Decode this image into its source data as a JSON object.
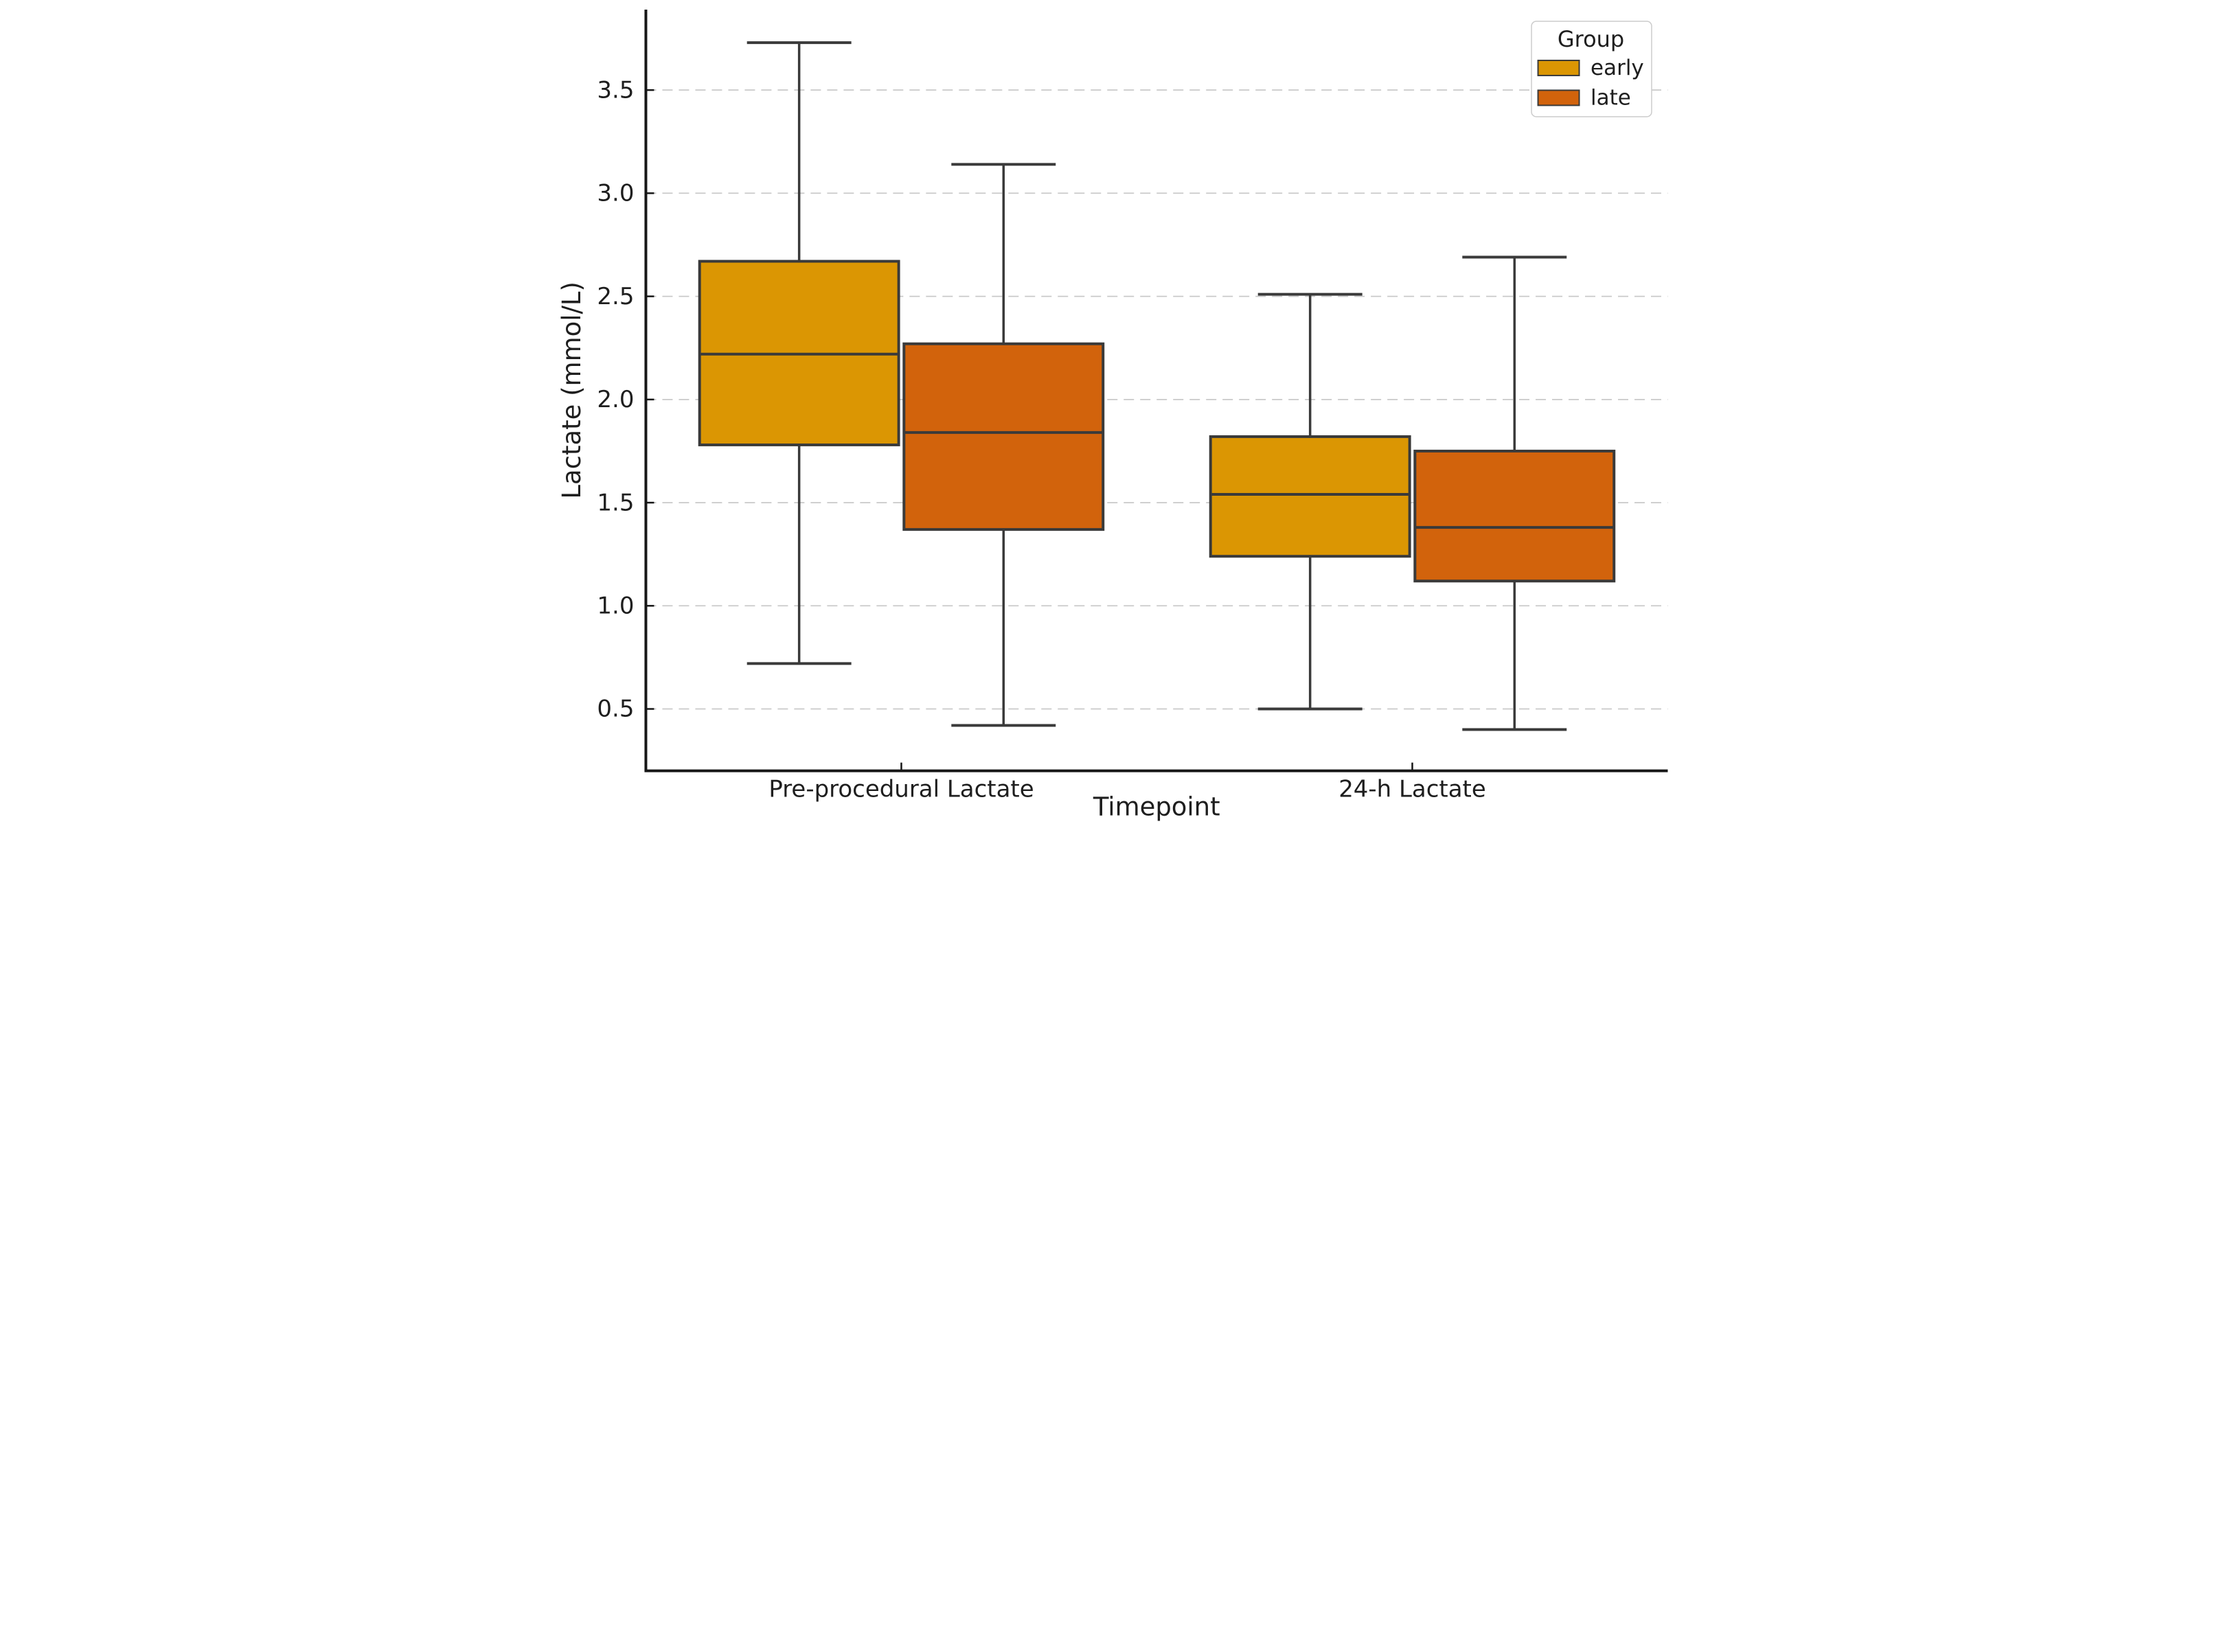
{
  "chart_data": {
    "type": "box",
    "xlabel": "Timepoint",
    "ylabel": "Lactate (mmol/L)",
    "categories": [
      "Pre-procedural Lactate",
      "24-h Lactate"
    ],
    "ylim": [
      0.2,
      3.89
    ],
    "yticks": [
      {
        "value": 0.5,
        "label": "0.5"
      },
      {
        "value": 1.0,
        "label": "1.0"
      },
      {
        "value": 1.5,
        "label": "1.5"
      },
      {
        "value": 2.0,
        "label": "2.0"
      },
      {
        "value": 2.5,
        "label": "2.5"
      },
      {
        "value": 3.0,
        "label": "3.0"
      },
      {
        "value": 3.5,
        "label": "3.5"
      }
    ],
    "grid": "horizontal-dashed",
    "legend": {
      "title": "Group",
      "position": "upper-right",
      "entries": [
        {
          "label": "early",
          "color": "#DB9603"
        },
        {
          "label": "late",
          "color": "#D2630C"
        }
      ]
    },
    "series": [
      {
        "name": "early",
        "color": "#DB9603",
        "boxes": [
          {
            "category": "Pre-procedural Lactate",
            "whisker_low": 0.72,
            "q1": 1.78,
            "median": 2.22,
            "q3": 2.67,
            "whisker_high": 3.73
          },
          {
            "category": "24-h Lactate",
            "whisker_low": 0.5,
            "q1": 1.24,
            "median": 1.54,
            "q3": 1.82,
            "whisker_high": 2.51
          }
        ]
      },
      {
        "name": "late",
        "color": "#D2630C",
        "boxes": [
          {
            "category": "Pre-procedural Lactate",
            "whisker_low": 0.42,
            "q1": 1.37,
            "median": 1.84,
            "q3": 2.27,
            "whisker_high": 3.14
          },
          {
            "category": "24-h Lactate",
            "whisker_low": 0.4,
            "q1": 1.12,
            "median": 1.38,
            "q3": 1.75,
            "whisker_high": 2.69
          }
        ]
      }
    ],
    "styles": {
      "box_edge_color": "#3A3A3A",
      "median_color": "#3A3A3A",
      "whisker_color": "#3A3A3A",
      "spine_color": "#161616",
      "grid_color": "#C9C9C9",
      "text_color": "#1E1E1E",
      "legend_border_color": "#CCCCCC",
      "background": "#FFFFFF"
    }
  }
}
